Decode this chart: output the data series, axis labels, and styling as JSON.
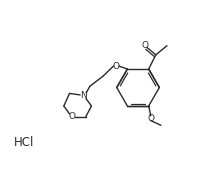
{
  "bg_color": "#ffffff",
  "line_color": "#2a2a2a",
  "lw": 1.0,
  "font_size": 6.5,
  "fig_width": 2.03,
  "fig_height": 1.73,
  "dpi": 100,
  "labels": {
    "O_acetyl": "O",
    "O_ether": "O",
    "O_methoxy": "O",
    "O_morpholine": "O",
    "N_morpholine": "N",
    "hcl": "HCl"
  },
  "xlim": [
    0,
    10
  ],
  "ylim": [
    0,
    8.5
  ]
}
